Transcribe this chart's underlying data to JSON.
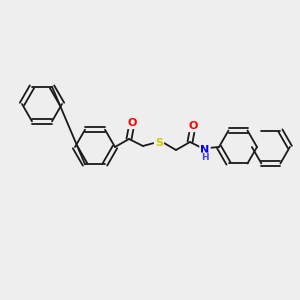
{
  "bg_color": "#eeeeee",
  "bond_color": "#1a1a1a",
  "bond_width": 1.3,
  "atom_colors": {
    "O": "#ff0000",
    "S": "#cccc00",
    "N": "#0000ff",
    "H": "#4444ff",
    "C": "#1a1a1a"
  },
  "figsize": [
    3.0,
    3.0
  ],
  "dpi": 100
}
